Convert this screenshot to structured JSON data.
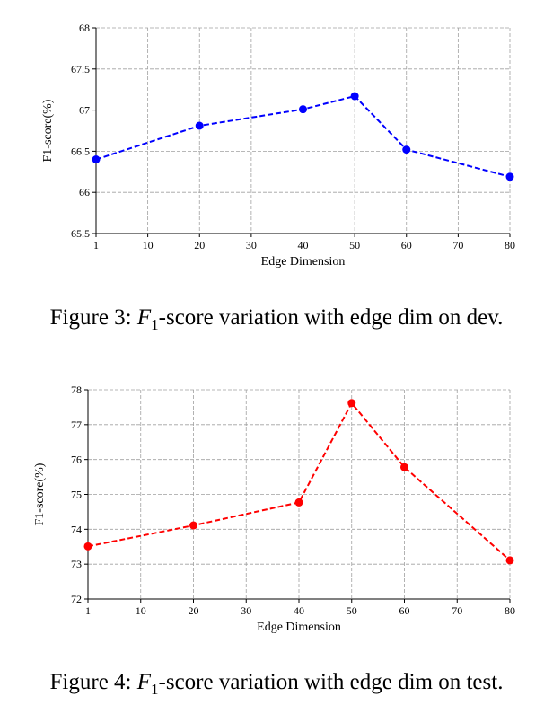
{
  "chart_data": [
    {
      "type": "line",
      "figure_number": "Figure 3:",
      "caption_var": "F",
      "caption_sub": "1",
      "caption_rest": "-score variation with edge dim on dev.",
      "xlabel": "Edge Dimension",
      "ylabel": "F1-score(%)",
      "categories": [
        "1",
        "10",
        "20",
        "30",
        "40",
        "50",
        "60",
        "70",
        "80"
      ],
      "y_ticks": [
        "65.5",
        "66",
        "66.5",
        "67",
        "67.5",
        "68"
      ],
      "ylim": [
        65.5,
        68
      ],
      "grid": true,
      "series": [
        {
          "color": "#0000ff",
          "line_style": "dashed",
          "marker": "circle",
          "x": [
            "1",
            "20",
            "40",
            "50",
            "60",
            "80"
          ],
          "values": [
            66.4,
            66.81,
            67.01,
            67.17,
            66.52,
            66.19
          ]
        }
      ]
    },
    {
      "type": "line",
      "figure_number": "Figure 4:",
      "caption_var": "F",
      "caption_sub": "1",
      "caption_rest": "-score variation with edge dim on test.",
      "xlabel": "Edge Dimension",
      "ylabel": "F1-score(%)",
      "categories": [
        "1",
        "10",
        "20",
        "30",
        "40",
        "50",
        "60",
        "70",
        "80"
      ],
      "y_ticks": [
        "72",
        "73",
        "74",
        "75",
        "76",
        "77",
        "78"
      ],
      "ylim": [
        72,
        78
      ],
      "grid": true,
      "series": [
        {
          "color": "#ff0000",
          "line_style": "dashed",
          "marker": "circle",
          "x": [
            "1",
            "20",
            "40",
            "50",
            "60",
            "80"
          ],
          "values": [
            73.51,
            74.11,
            74.77,
            77.62,
            75.78,
            73.11
          ]
        }
      ]
    }
  ]
}
